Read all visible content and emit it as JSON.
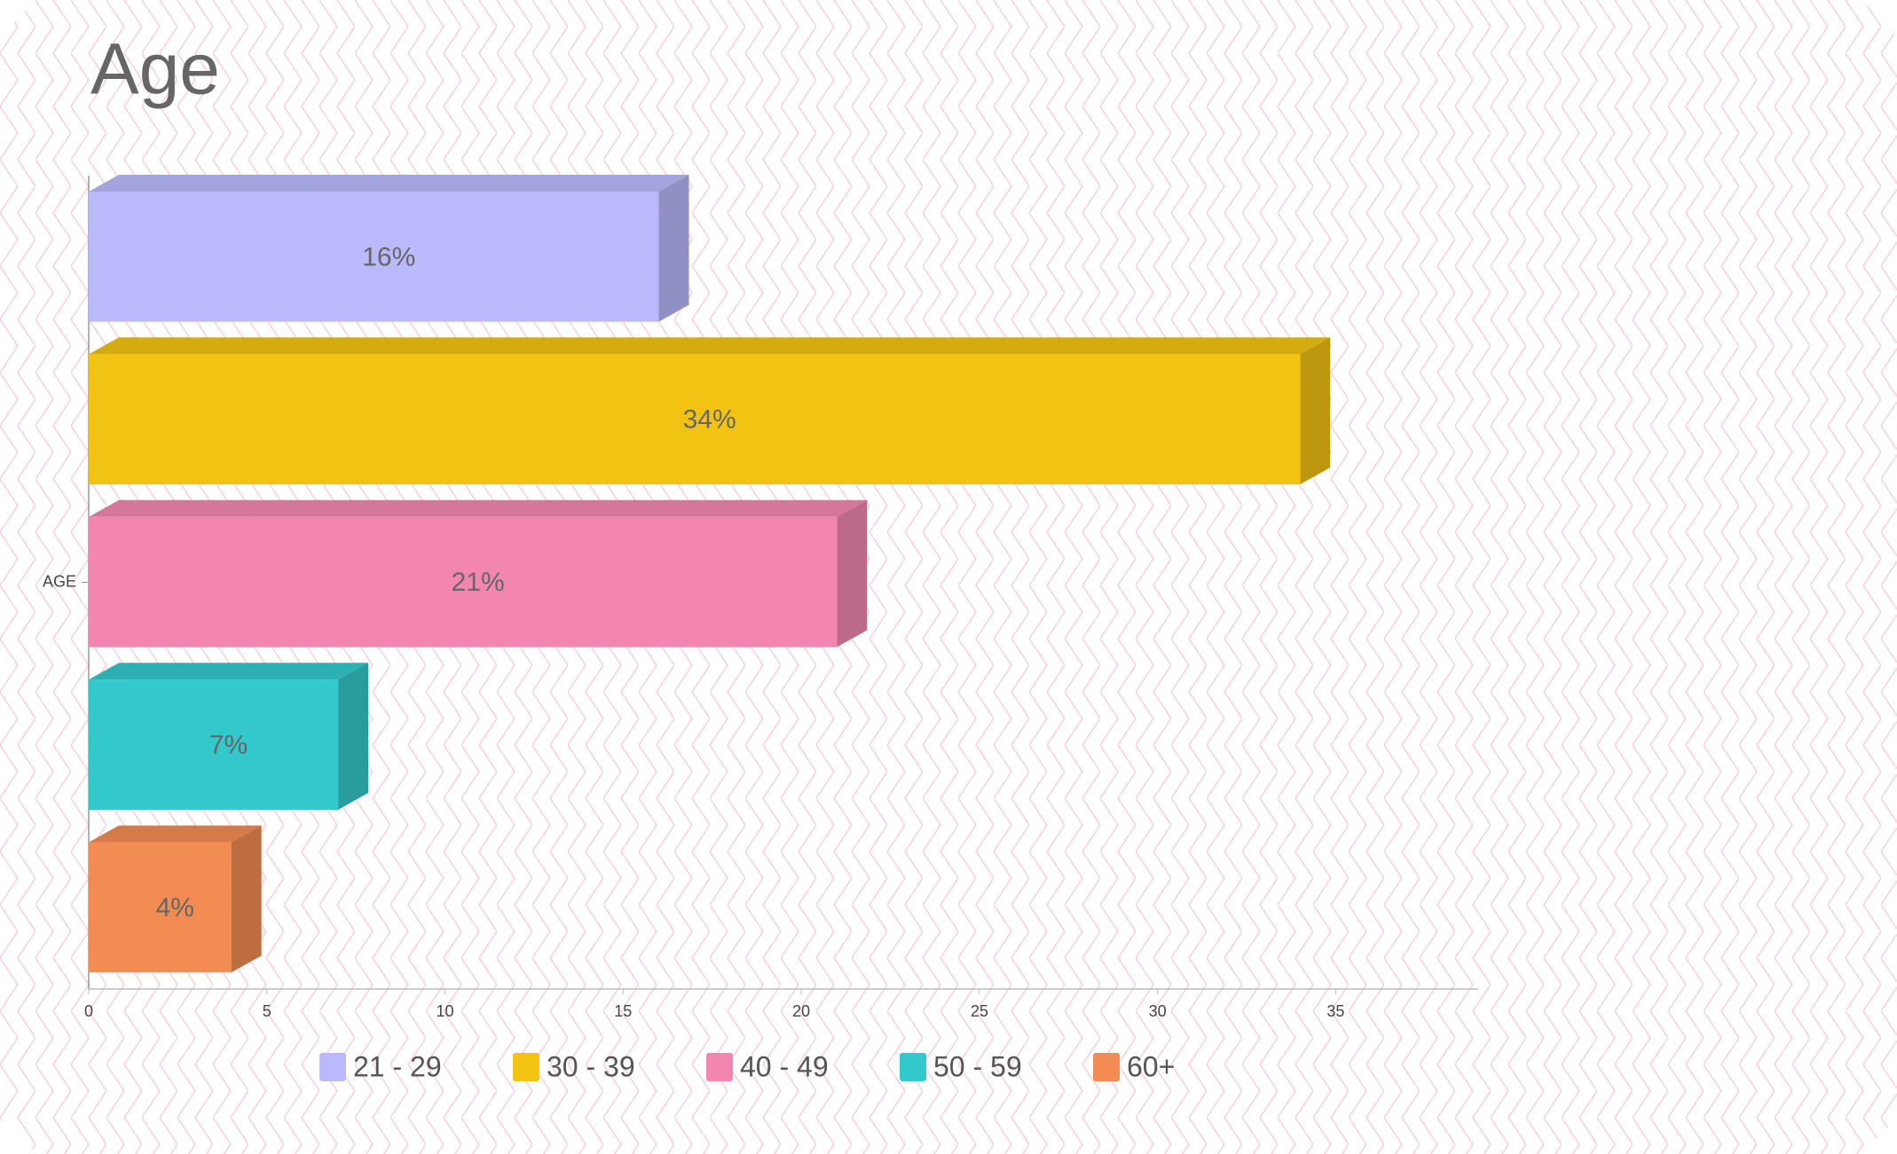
{
  "chart_data": {
    "type": "bar",
    "horizontal": true,
    "three_d": true,
    "title": "Age",
    "categories": [
      "AGE"
    ],
    "series": [
      {
        "name": "21 - 29",
        "color": "#b9b9fc",
        "values": [
          16
        ],
        "value_labels": [
          "16%"
        ]
      },
      {
        "name": "30 - 39",
        "color": "#f2c312",
        "values": [
          34
        ],
        "value_labels": [
          "34%"
        ]
      },
      {
        "name": "40 - 49",
        "color": "#f286b0",
        "values": [
          21
        ],
        "value_labels": [
          "21%"
        ]
      },
      {
        "name": "50 - 59",
        "color": "#33c8cc",
        "values": [
          7
        ],
        "value_labels": [
          "7%"
        ]
      },
      {
        "name": "60+",
        "color": "#f28c52",
        "values": [
          4
        ],
        "value_labels": [
          "4%"
        ]
      }
    ],
    "xlim": [
      0,
      39
    ],
    "xticks": [
      0,
      5,
      10,
      15,
      20,
      25,
      30,
      35
    ],
    "grid": false
  }
}
